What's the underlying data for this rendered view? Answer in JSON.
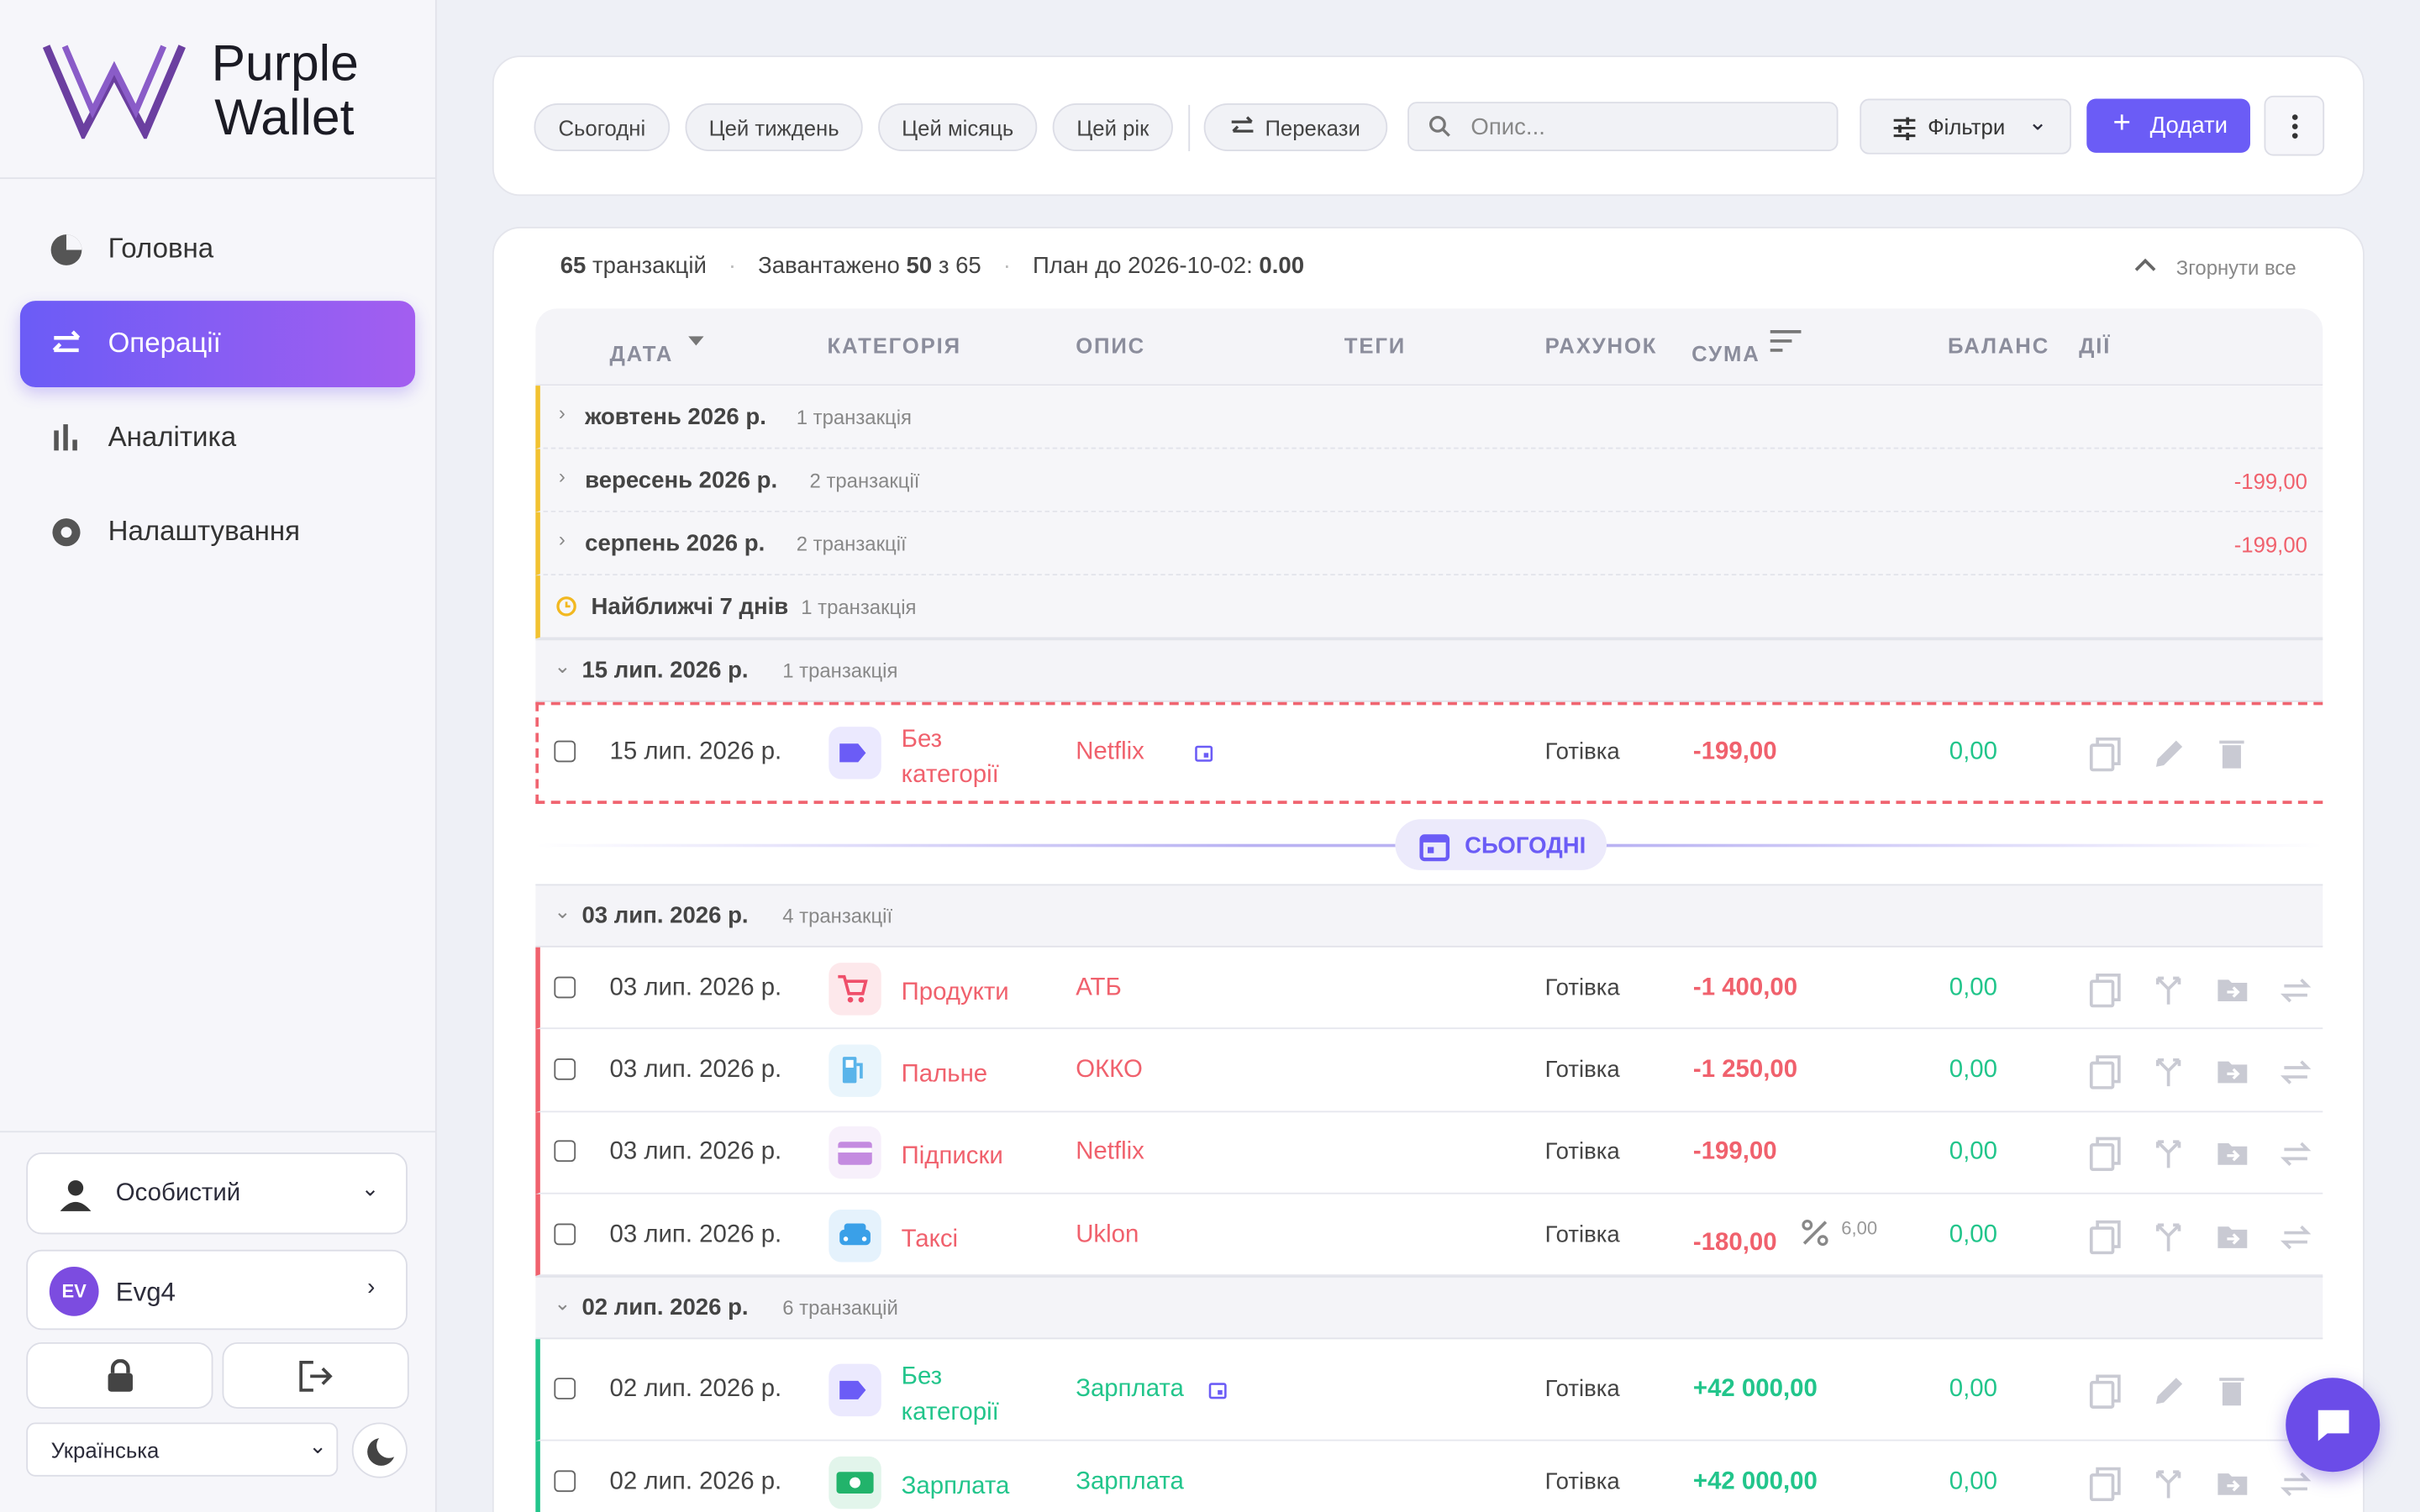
{
  "sidebar": {
    "brand_top": "Purple",
    "brand_bottom": "Wallet",
    "nav": [
      "Головна",
      "Операції",
      "Аналітика",
      "Налаштування"
    ],
    "account": "Особистий",
    "user_initials": "EV",
    "user_name": "Evg4",
    "language": "Українська"
  },
  "toolbar": {
    "periods": [
      "Сьогодні",
      "Цей тиждень",
      "Цей місяць",
      "Цей рік"
    ],
    "transfers": "Перекази",
    "search_placeholder": "Опис...",
    "filters": "Фільтри",
    "add": "Додати"
  },
  "summary": {
    "count": "65",
    "count_label": "транзакцій",
    "loaded_label": "Завантажено",
    "loaded": "50",
    "loaded_of": "з 65",
    "plan_label": "План до 2026-10-02:",
    "plan": "0.00",
    "collapse": "Згорнути все"
  },
  "columns": [
    "ДАТА",
    "КАТЕГОРІЯ",
    "ОПИС",
    "ТЕГИ",
    "РАХУНОК",
    "СУМА",
    "БАЛАНС",
    "ДІЇ"
  ],
  "groups": [
    {
      "title": "жовтень 2026 р.",
      "count": "1 транзакція"
    },
    {
      "title": "вересень 2026 р.",
      "count": "2 транзакції",
      "total": "-199,00"
    },
    {
      "title": "серпень 2026 р.",
      "count": "2 транзакції",
      "total": "-199,00"
    }
  ],
  "upcoming": {
    "title": "Найближчі 7 днів",
    "count": "1 транзакція"
  },
  "today": "СЬОГОДНІ",
  "days": [
    {
      "title": "15 лип. 2026 р.",
      "count": "1 транзакція",
      "planned": true,
      "rows": [
        {
          "date": "15 лип. 2026 р.",
          "category": "Без категорії",
          "description": "Netflix",
          "scheduled": true,
          "account": "Готівка",
          "amount": "-199,00",
          "balance": "0,00",
          "color": "#f0616d",
          "icon": "tag",
          "icon_color": "#6b5cf6",
          "editable": true
        }
      ]
    },
    {
      "title": "03 лип. 2026 р.",
      "count": "4 транзакції",
      "rows": [
        {
          "date": "03 лип. 2026 р.",
          "category": "Продукти",
          "description": "АТБ",
          "account": "Готівка",
          "amount": "-1 400,00",
          "balance": "0,00",
          "color": "#f0616d",
          "icon": "cart",
          "icon_color": "#ef4f6a"
        },
        {
          "date": "03 лип. 2026 р.",
          "category": "Пальне",
          "description": "ОККО",
          "account": "Готівка",
          "amount": "-1 250,00",
          "balance": "0,00",
          "color": "#f0616d",
          "icon": "fuel",
          "icon_color": "#5ab4ea"
        },
        {
          "date": "03 лип. 2026 р.",
          "category": "Підписки",
          "description": "Netflix",
          "account": "Готівка",
          "amount": "-199,00",
          "balance": "0,00",
          "color": "#f0616d",
          "icon": "card",
          "icon_color": "#c48be0"
        },
        {
          "date": "03 лип. 2026 р.",
          "category": "Таксі",
          "description": "Uklon",
          "account": "Готівка",
          "amount": "-180,00",
          "commission": "6,00",
          "balance": "0,00",
          "color": "#f0616d",
          "icon": "taxi",
          "icon_color": "#3aa0e8"
        }
      ]
    },
    {
      "title": "02 лип. 2026 р.",
      "count": "6 транзакцій",
      "rows": [
        {
          "date": "02 лип. 2026 р.",
          "category": "Без категорії",
          "description": "Зарплата",
          "scheduled": true,
          "account": "Готівка",
          "amount": "+42 000,00",
          "balance": "0,00",
          "color": "#22c58b",
          "icon": "tag",
          "icon_color": "#6b5cf6",
          "editable": true
        },
        {
          "date": "02 лип. 2026 р.",
          "category": "Зарплата",
          "description": "Зарплата",
          "account": "Готівка",
          "amount": "+42 000,00",
          "balance": "0,00",
          "color": "#22c58b",
          "icon": "cash",
          "icon_color": "#22b36b"
        }
      ]
    }
  ]
}
